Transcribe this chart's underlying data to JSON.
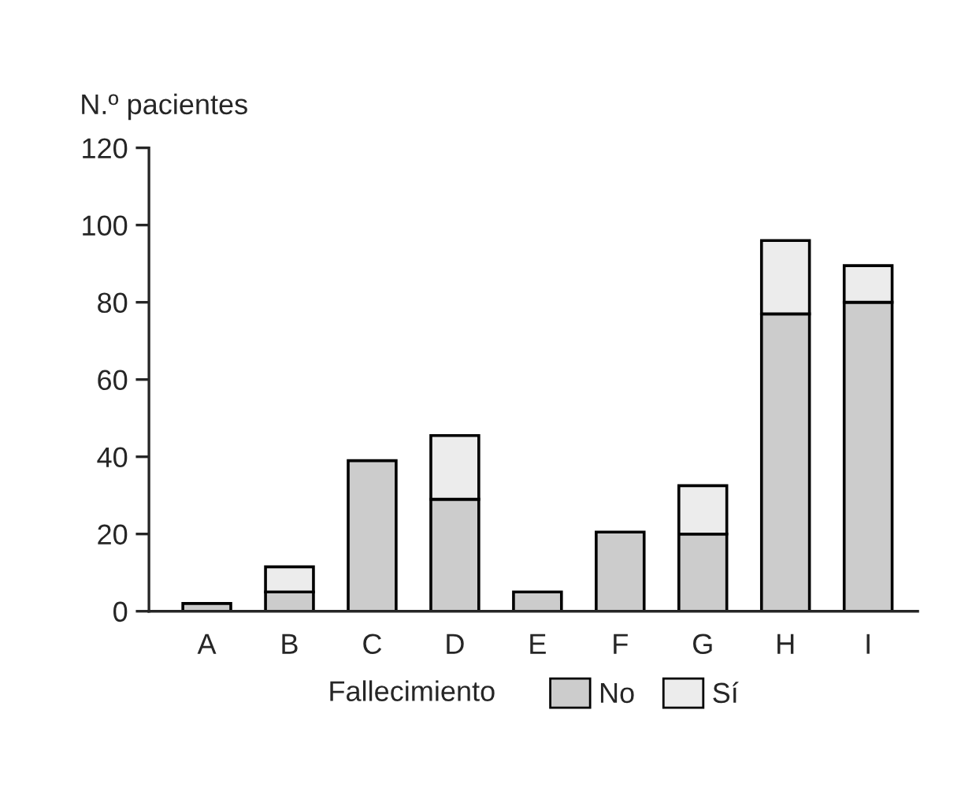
{
  "chart_data": {
    "type": "bar",
    "stacked": true,
    "ylabel": "N.º pacientes",
    "legend_title": "Fallecimiento",
    "legend": "bottom",
    "categories": [
      "A",
      "B",
      "C",
      "D",
      "E",
      "F",
      "G",
      "H",
      "I"
    ],
    "series": [
      {
        "name": "No",
        "color": "#cccccc",
        "values": [
          2,
          5,
          39,
          29,
          5,
          20.5,
          20,
          77,
          80
        ]
      },
      {
        "name": "Sí",
        "color": "#ececec",
        "values": [
          null,
          6.5,
          null,
          16.5,
          null,
          null,
          12.5,
          19,
          9.5
        ]
      }
    ],
    "ylim": [
      0,
      120
    ],
    "yticks": [
      0,
      20,
      40,
      60,
      80,
      100,
      120
    ],
    "grid": false
  }
}
